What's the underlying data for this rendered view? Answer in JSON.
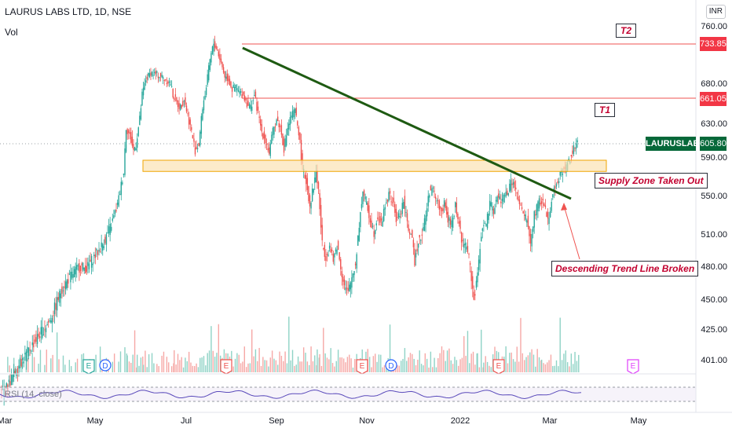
{
  "header": {
    "title": "LAURUS LABS LTD, 1D, NSE",
    "volume_label": "Vol",
    "currency": "INR"
  },
  "rsi_label": "RSI (14, close)",
  "tags": {
    "t2_price": "733.85",
    "t1_price": "661.05",
    "last_price": "605.80",
    "symbol": "LAURUSLABS"
  },
  "annotations": {
    "t2": "T2",
    "t1": "T1",
    "supply": "Supply Zone Taken Out",
    "trendline": "Descending Trend Line Broken"
  },
  "colors": {
    "up": "#26a69a",
    "down": "#ef5350",
    "trendline": "#1e5a12",
    "target_line": "#ef5350",
    "zone_fill": "#fbe3b4",
    "zone_border": "#f0a500",
    "rsi_line": "#5b4bbb",
    "symbol_tag": "#066839"
  },
  "chart_data": {
    "type": "candlestick",
    "title": "LAURUS LABS LTD, 1D, NSE",
    "x_ticks": [
      "Mar",
      "May",
      "Jul",
      "Sep",
      "Nov",
      "2022",
      "Mar",
      "May"
    ],
    "y_ticks": [
      760,
      680,
      630,
      590,
      550,
      510,
      480,
      450,
      425,
      401
    ],
    "y_tick_labels": [
      "760.00",
      "680.00",
      "630.00",
      "590.00",
      "550.00",
      "510.00",
      "480.00",
      "450.00",
      "425.00",
      "401.00"
    ],
    "price_path": [
      [
        0,
        370
      ],
      [
        5,
        375
      ],
      [
        10,
        385
      ],
      [
        15,
        395
      ],
      [
        20,
        402
      ],
      [
        25,
        410
      ],
      [
        30,
        418
      ],
      [
        35,
        425
      ],
      [
        40,
        432
      ],
      [
        45,
        445
      ],
      [
        50,
        460
      ],
      [
        55,
        468
      ],
      [
        60,
        475
      ],
      [
        65,
        480
      ],
      [
        70,
        478
      ],
      [
        75,
        487
      ],
      [
        80,
        495
      ],
      [
        85,
        505
      ],
      [
        90,
        520
      ],
      [
        95,
        540
      ],
      [
        100,
        575
      ],
      [
        102,
        625
      ],
      [
        105,
        615
      ],
      [
        108,
        598
      ],
      [
        110,
        605
      ],
      [
        113,
        635
      ],
      [
        115,
        665
      ],
      [
        118,
        685
      ],
      [
        122,
        695
      ],
      [
        126,
        692
      ],
      [
        130,
        690
      ],
      [
        134,
        685
      ],
      [
        138,
        680
      ],
      [
        140,
        665
      ],
      [
        143,
        655
      ],
      [
        146,
        650
      ],
      [
        149,
        660
      ],
      [
        152,
        640
      ],
      [
        155,
        620
      ],
      [
        158,
        598
      ],
      [
        161,
        605
      ],
      [
        164,
        650
      ],
      [
        167,
        675
      ],
      [
        170,
        712
      ],
      [
        173,
        735
      ],
      [
        176,
        725
      ],
      [
        179,
        708
      ],
      [
        182,
        690
      ],
      [
        185,
        685
      ],
      [
        188,
        672
      ],
      [
        191,
        675
      ],
      [
        194,
        668
      ],
      [
        197,
        665
      ],
      [
        200,
        655
      ],
      [
        203,
        650
      ],
      [
        206,
        665
      ],
      [
        209,
        642
      ],
      [
        212,
        620
      ],
      [
        215,
        610
      ],
      [
        218,
        595
      ],
      [
        221,
        620
      ],
      [
        224,
        635
      ],
      [
        227,
        625
      ],
      [
        230,
        600
      ],
      [
        233,
        625
      ],
      [
        236,
        640
      ],
      [
        239,
        645
      ],
      [
        242,
        620
      ],
      [
        245,
        578
      ],
      [
        248,
        565
      ],
      [
        251,
        540
      ],
      [
        254,
        560
      ],
      [
        256,
        575
      ],
      [
        258,
        555
      ],
      [
        261,
        500
      ],
      [
        264,
        490
      ],
      [
        267,
        498
      ],
      [
        270,
        485
      ],
      [
        273,
        500
      ],
      [
        276,
        480
      ],
      [
        279,
        462
      ],
      [
        282,
        455
      ],
      [
        285,
        470
      ],
      [
        288,
        482
      ],
      [
        291,
        520
      ],
      [
        294,
        555
      ],
      [
        297,
        540
      ],
      [
        300,
        525
      ],
      [
        303,
        512
      ],
      [
        306,
        530
      ],
      [
        309,
        520
      ],
      [
        312,
        540
      ],
      [
        315,
        550
      ],
      [
        318,
        545
      ],
      [
        321,
        525
      ],
      [
        324,
        530
      ],
      [
        327,
        545
      ],
      [
        330,
        520
      ],
      [
        333,
        510
      ],
      [
        336,
        485
      ],
      [
        339,
        505
      ],
      [
        342,
        510
      ],
      [
        345,
        530
      ],
      [
        348,
        555
      ],
      [
        351,
        555
      ],
      [
        354,
        545
      ],
      [
        357,
        535
      ],
      [
        360,
        540
      ],
      [
        363,
        525
      ],
      [
        366,
        520
      ],
      [
        369,
        540
      ],
      [
        372,
        520
      ],
      [
        375,
        500
      ],
      [
        378,
        500
      ],
      [
        381,
        480
      ],
      [
        384,
        450
      ],
      [
        386,
        462
      ],
      [
        389,
        500
      ],
      [
        391,
        518
      ],
      [
        394,
        520
      ],
      [
        397,
        540
      ],
      [
        400,
        535
      ],
      [
        403,
        548
      ],
      [
        406,
        545
      ],
      [
        409,
        550
      ],
      [
        412,
        555
      ],
      [
        415,
        565
      ],
      [
        418,
        555
      ],
      [
        421,
        540
      ],
      [
        424,
        530
      ],
      [
        427,
        525
      ],
      [
        430,
        500
      ],
      [
        433,
        530
      ],
      [
        436,
        540
      ],
      [
        438,
        545
      ],
      [
        441,
        540
      ],
      [
        444,
        525
      ],
      [
        447,
        545
      ],
      [
        450,
        560
      ],
      [
        453,
        570
      ],
      [
        456,
        575
      ],
      [
        459,
        580
      ],
      [
        462,
        590
      ],
      [
        465,
        600
      ],
      [
        468,
        606
      ]
    ],
    "target_lines": [
      {
        "name": "T2",
        "value": 733.85
      },
      {
        "name": "T1",
        "value": 661.05
      }
    ],
    "supply_zone": {
      "low": 580,
      "high": 590
    },
    "trend_line": {
      "from": {
        "x_index": 170,
        "value": 740
      },
      "to": {
        "x_index": 452,
        "value": 548
      }
    },
    "last_price": 605.8,
    "event_markers": [
      {
        "label": "E",
        "x_index": 56,
        "color": "#26a69a"
      },
      {
        "label": "D",
        "x_index": 67,
        "color": "#2962ff"
      },
      {
        "label": "E",
        "x_index": 144,
        "color": "#ef5350"
      },
      {
        "label": "E",
        "x_index": 231,
        "color": "#ef5350"
      },
      {
        "label": "D",
        "x_index": 250,
        "color": "#2962ff"
      },
      {
        "label": "E",
        "x_index": 318,
        "color": "#ef5350"
      },
      {
        "label": "E",
        "x_index": 404,
        "color": "#e040fb"
      }
    ]
  }
}
